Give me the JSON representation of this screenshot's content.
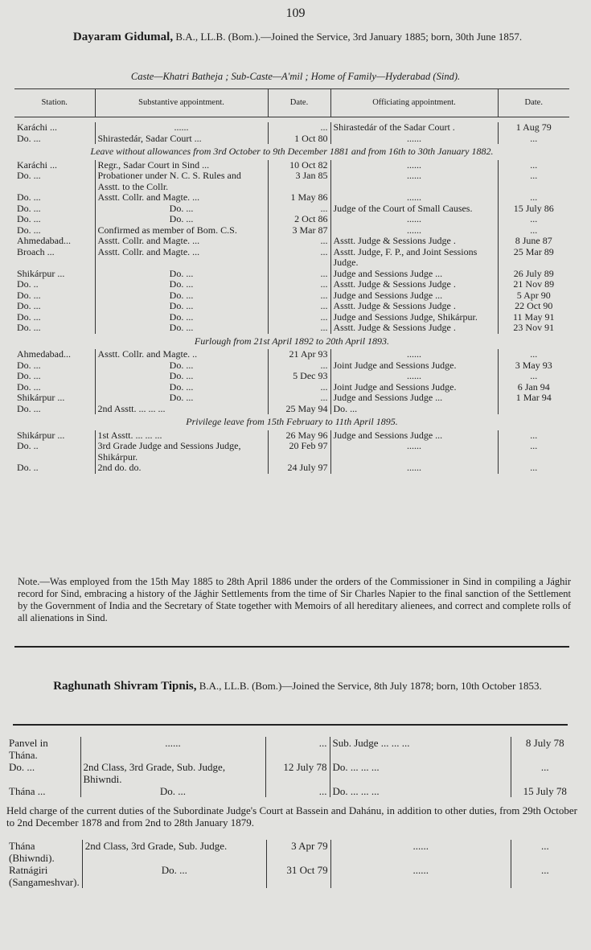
{
  "page_number": "109",
  "officer1": {
    "name": "Dayaram Gidumal,",
    "header_rest": "B.A., LL.B. (Bom.).—Joined the Service, 3rd January 1885; born, 30th June 1857.",
    "caste_line": "Caste—Khatri Batheja ; Sub-Caste—A'mil ; Home of Family—Hyderabad (Sind).",
    "columns": [
      "Station.",
      "Substantive appointment.",
      "Date.",
      "Officiating appointment.",
      "Date."
    ],
    "rows": [
      {
        "sp": true
      },
      [
        "Karáchi ...",
        "......",
        "...",
        "Shirastedár of the Sadar Court .",
        "1 Aug 79"
      ],
      [
        "Do. ...",
        "Shirastedár, Sadar Court ...",
        "1 Oct 80",
        "......",
        "..."
      ],
      {
        "note": "Leave without allowances from 3rd October to 9th December 1881 and from 16th to 30th January 1882."
      },
      [
        "Karáchi ...",
        "Regr., Sadar Court in Sind ...",
        "10 Oct 82",
        "......",
        "..."
      ],
      [
        "Do. ...",
        "Probationer under N. C. S. Rules and Asstt. to the Collr.",
        "3 Jan 85",
        "......",
        "..."
      ],
      [
        "Do. ...",
        "Asstt. Collr. and Magte. ...",
        "1 May 86",
        "......",
        "..."
      ],
      [
        "Do. ...",
        "Do. ...",
        "...",
        "Judge of the Court of Small Causes.",
        "15 July 86"
      ],
      [
        "Do. ...",
        "Do. ...",
        "2 Oct 86",
        "......",
        "..."
      ],
      [
        "Do. ...",
        "Confirmed as member of Bom. C.S.",
        "3 Mar 87",
        "......",
        "..."
      ],
      [
        "Ahmedabad...",
        "Asstt. Collr. and Magte. ...",
        "...",
        "Asstt. Judge & Sessions Judge .",
        "8 June 87"
      ],
      [
        "Broach ...",
        "Asstt. Collr. and Magte. ...",
        "...",
        "Asstt. Judge, F. P., and Joint Sessions Judge.",
        "25 Mar 89"
      ],
      [
        "Shikárpur ...",
        "Do. ...",
        "...",
        "Judge and Sessions Judge ...",
        "26 July 89"
      ],
      [
        "Do. ..",
        "Do. ...",
        "...",
        "Asstt. Judge & Sessions Judge .",
        "21 Nov 89"
      ],
      [
        "Do. ...",
        "Do. ...",
        "...",
        "Judge and Sessions Judge ...",
        "5 Apr 90"
      ],
      [
        "Do. ...",
        "Do. ...",
        "...",
        "Asstt. Judge & Sessions Judge .",
        "22 Oct 90"
      ],
      [
        "Do. ...",
        "Do. ...",
        "...",
        "Judge and Sessions Judge, Shikárpur.",
        "11 May 91"
      ],
      [
        "Do. ...",
        "Do. ...",
        "...",
        "Asstt. Judge & Sessions Judge .",
        "23 Nov 91"
      ],
      {
        "note": "Furlough from 21st April 1892 to 20th April 1893."
      },
      [
        "Ahmedabad...",
        "Asstt. Collr. and Magte. ..",
        "21 Apr 93",
        "......",
        "..."
      ],
      [
        "Do. ...",
        "Do. ...",
        "...",
        "Joint Judge and Sessions Judge.",
        "3 May 93"
      ],
      [
        "Do. ...",
        "Do. ...",
        "5 Dec 93",
        "......",
        "..."
      ],
      [
        "Do. ...",
        "Do. ...",
        "...",
        "Joint Judge and Sessions Judge.",
        "6 Jan 94"
      ],
      [
        "Shikárpur ...",
        "Do. ...",
        "...",
        "Judge and Sessions Judge ...",
        "1 Mar 94"
      ],
      [
        "Do. ...",
        "2nd Asstt. ... ... ...",
        "25 May 94",
        "Do. ...",
        ""
      ],
      {
        "note": "Privilege leave from 15th February to 11th April 1895."
      },
      [
        "Shikárpur ...",
        "1st Asstt. ... ... ...",
        "26 May 96",
        "Judge and Sessions Judge ...",
        "..."
      ],
      [
        "Do. ..",
        "3rd Grade Judge and Sessions Judge, Shikárpur.",
        "20 Feb 97",
        "......",
        "..."
      ],
      [
        "Do. ..",
        "2nd do. do.",
        "24 July 97",
        "......",
        "..."
      ]
    ],
    "note": "Note.—Was employed from the 15th May 1885 to 28th April 1886 under the orders of the Commissioner in Sind in compiling a Jághir record for Sind, embracing a history of the Jághir Settlements from the time of Sir Charles Napier to the final sanction of the Settlement by the Government of India and the Secretary of State together with Memoirs of all hereditary alienees, and correct and complete rolls of all alienations in Sind."
  },
  "officer2": {
    "name": "Raghunath Shivram Tipnis,",
    "header_rest": "B.A., LL.B. (Bom.)—Joined the Service, 8th July 1878; born, 10th October 1853.",
    "rows_a": [
      [
        "Panvel in Thána.",
        "......",
        "...",
        "Sub. Judge ... ... ...",
        "8 July 78"
      ],
      [
        "Do. ...",
        "2nd Class, 3rd Grade, Sub. Judge, Bhiwndi.",
        "12 July 78",
        "Do. ... ... ...",
        "..."
      ],
      [
        "Thána ...",
        "Do. ...",
        "...",
        "Do. ... ... ...",
        "15 July 78"
      ]
    ],
    "held_charge": "Held charge of the current duties of the Subordinate Judge's Court at Bassein and Dahánu, in addition to other duties, from 29th October to 2nd December 1878 and from 2nd to 28th January 1879.",
    "rows_b": [
      [
        "Thána (Bhiwndi).",
        "2nd Class, 3rd Grade, Sub. Judge.",
        "3 Apr 79",
        "......",
        "..."
      ],
      [
        "Ratnágiri (Sangameshvar).",
        "Do. ...",
        "31 Oct 79",
        "......",
        "..."
      ]
    ]
  }
}
